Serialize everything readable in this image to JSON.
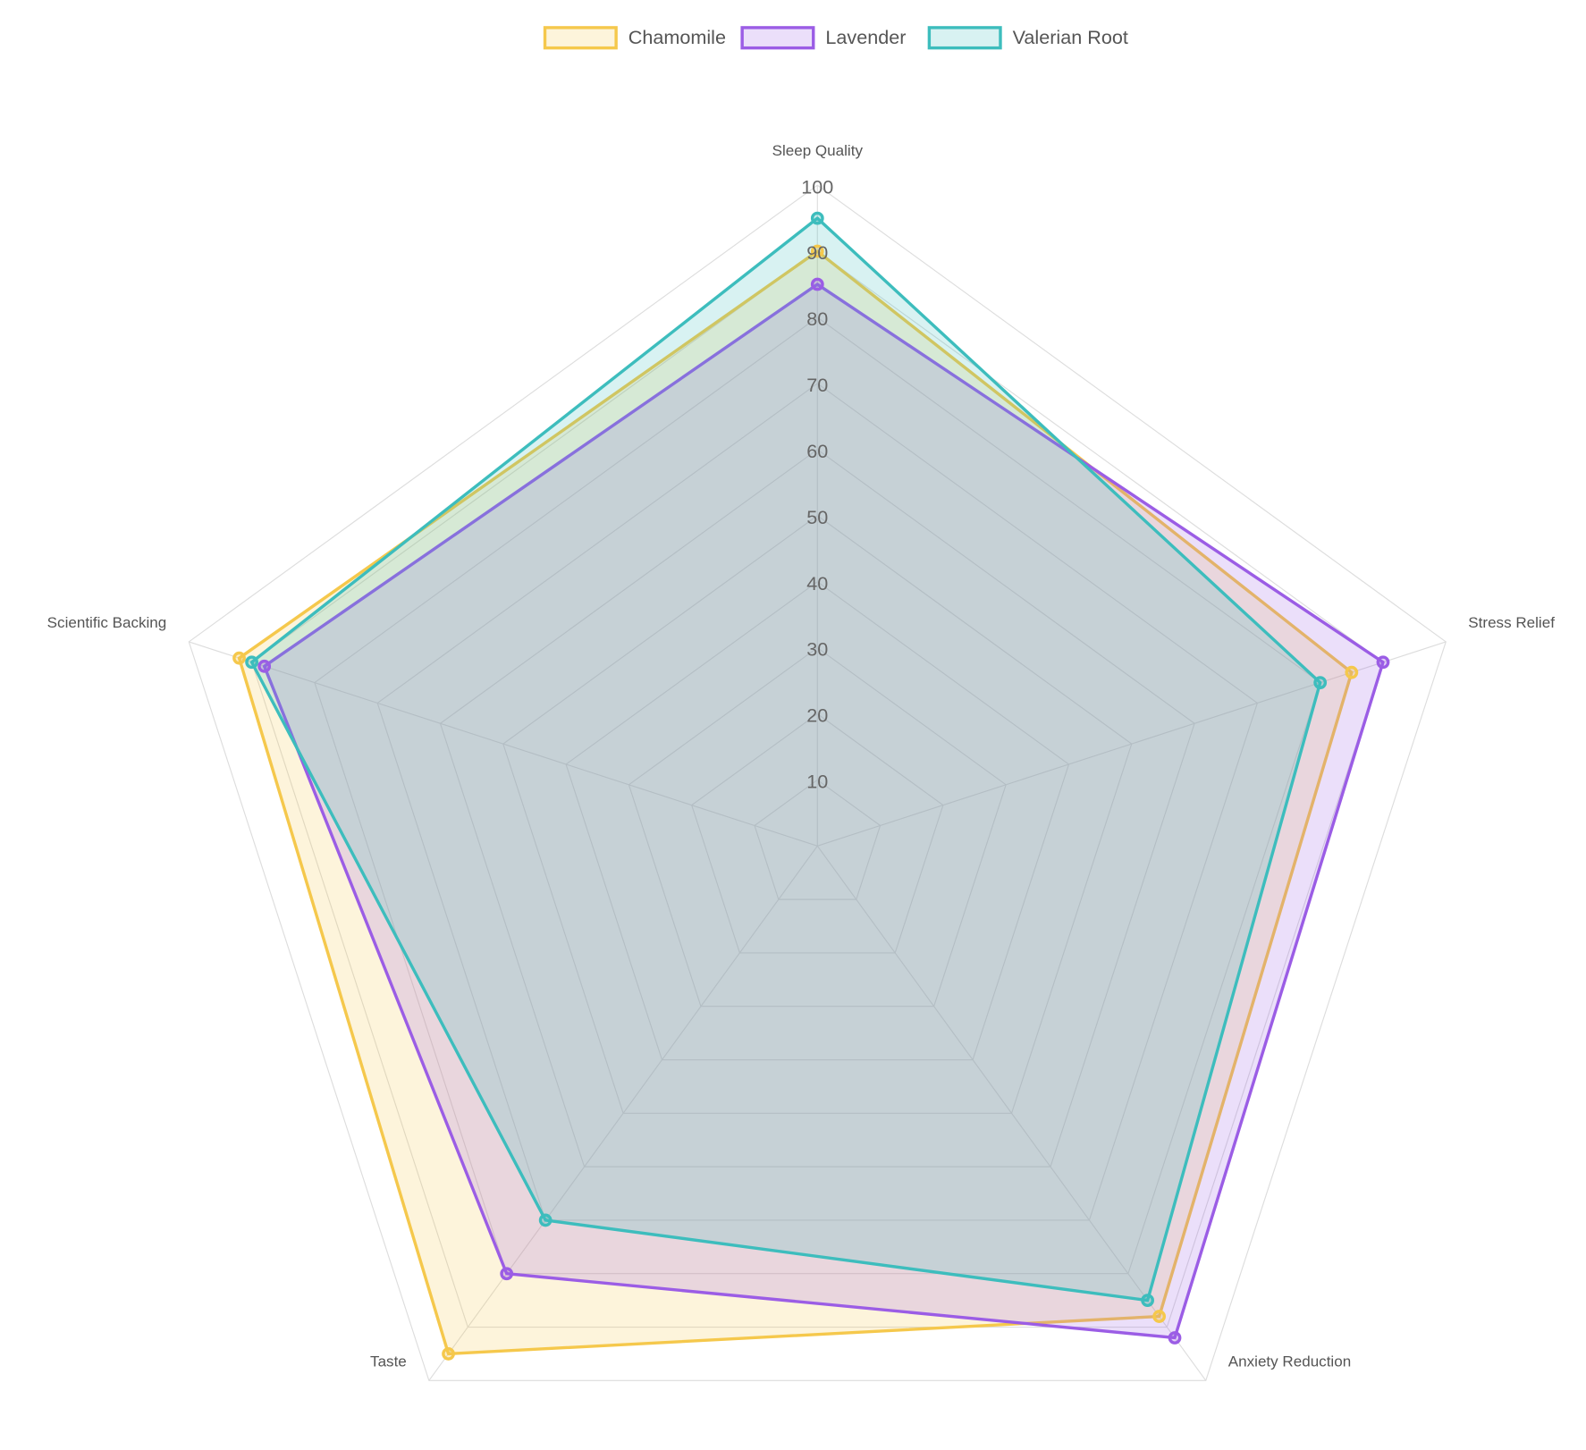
{
  "chart_data": {
    "type": "radar",
    "categories": [
      "Sleep Quality",
      "Stress Relief",
      "Anxiety Reduction",
      "Taste",
      "Scientific Backing"
    ],
    "rlim": [
      0,
      100
    ],
    "rticks": [
      10,
      20,
      30,
      40,
      50,
      60,
      70,
      80,
      90,
      100
    ],
    "grid": true,
    "legend": "top",
    "series": [
      {
        "name": "Chamomile",
        "color": "#f5c84c",
        "values": [
          90,
          85,
          88,
          95,
          92
        ]
      },
      {
        "name": "Lavender",
        "color": "#9b5de5",
        "values": [
          85,
          90,
          92,
          80,
          88
        ]
      },
      {
        "name": "Valerian Root",
        "color": "#3dbdbd",
        "values": [
          95,
          80,
          85,
          70,
          90
        ]
      }
    ]
  }
}
